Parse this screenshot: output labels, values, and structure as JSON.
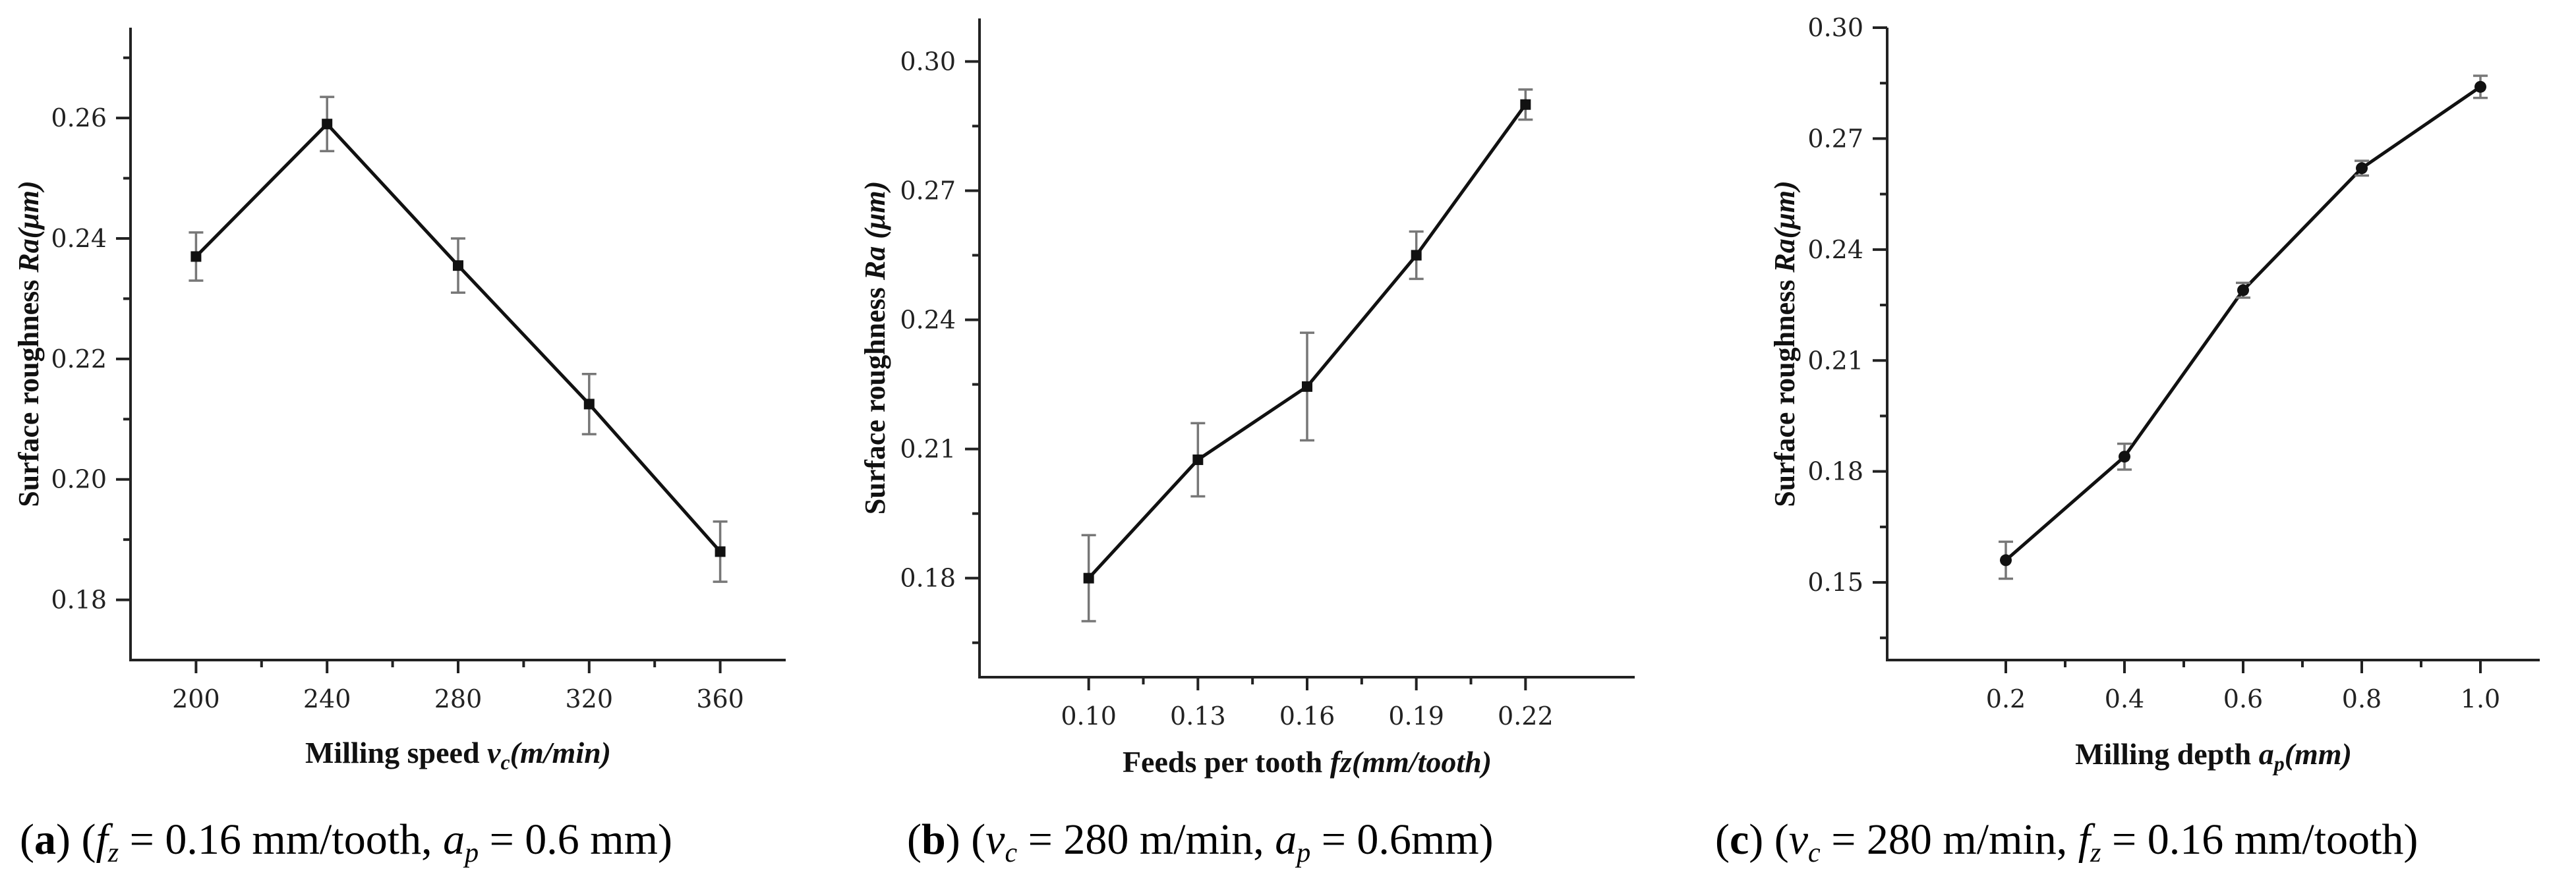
{
  "chart_data": [
    {
      "type": "line",
      "panel_label": "(a)",
      "caption": "(fz = 0.16 mm/tooth, ap = 0.6 mm)",
      "caption_parts": {
        "open": " (",
        "v1_main": "f",
        "v1_sub": "z",
        "mid1": " = 0.16 mm/tooth, ",
        "v2_main": "a",
        "v2_sub": "p",
        "end": " = 0.6 mm)"
      },
      "ylabel": "Surface roughness Ra(μm)",
      "ylabel_parts": {
        "prefix": "Surface roughness ",
        "main": "Ra(μm)",
        "sub": ""
      },
      "xlabel": "Milling speed vc(m/min)",
      "xlabel_parts": {
        "prefix": "Milling speed ",
        "main": "v",
        "sub": "c",
        "suffix": "(m/min)"
      },
      "x": [
        200,
        240,
        280,
        320,
        360
      ],
      "x_ticks": [
        "200",
        "240",
        "280",
        "320",
        "360"
      ],
      "xlim": [
        180,
        380
      ],
      "y": [
        0.237,
        0.259,
        0.2355,
        0.2125,
        0.188
      ],
      "y_err": [
        0.004,
        0.0045,
        0.0045,
        0.005,
        0.005
      ],
      "ylim": [
        0.17,
        0.275
      ],
      "y_ticks": [
        "0.18",
        "0.20",
        "0.22",
        "0.24",
        "0.26"
      ],
      "y_tick_values": [
        0.18,
        0.2,
        0.22,
        0.24,
        0.26
      ],
      "marker": "square"
    },
    {
      "type": "line",
      "panel_label": "(b)",
      "caption": "(vc = 280 m/min, ap = 0.6mm)",
      "caption_parts": {
        "open": " (",
        "v1_main": "v",
        "v1_sub": "c",
        "mid1": " = 280 m/min, ",
        "v2_main": "a",
        "v2_sub": "p",
        "end": " = 0.6mm)"
      },
      "ylabel": "Surface roughness Ra(μm)",
      "ylabel_parts": {
        "prefix": "Surface roughness ",
        "main": "Ra (μm)",
        "sub": ""
      },
      "xlabel": "Feeds per tooth fz(mm/tooth)",
      "xlabel_parts": {
        "prefix": "Feeds per tooth ",
        "main": "fz",
        "sub": "",
        "suffix": "(mm/tooth)"
      },
      "x": [
        0.1,
        0.13,
        0.16,
        0.19,
        0.22
      ],
      "x_ticks": [
        "0.10",
        "0.13",
        "0.16",
        "0.19",
        "0.22"
      ],
      "xlim": [
        0.07,
        0.25
      ],
      "y": [
        0.18,
        0.2075,
        0.2245,
        0.255,
        0.29
      ],
      "y_err": [
        0.01,
        0.0085,
        0.0125,
        0.0055,
        0.0035
      ],
      "ylim": [
        0.157,
        0.31
      ],
      "y_ticks": [
        "0.18",
        "0.21",
        "0.24",
        "0.27",
        "0.30"
      ],
      "y_tick_values": [
        0.18,
        0.21,
        0.24,
        0.27,
        0.3
      ],
      "marker": "square"
    },
    {
      "type": "line",
      "panel_label": "(c)",
      "caption": "(vc = 280 m/min, fz = 0.16 mm/tooth)",
      "caption_parts": {
        "open": " (",
        "v1_main": "v",
        "v1_sub": "c",
        "mid1": " = 280 m/min, ",
        "v2_main": "f",
        "v2_sub": "z",
        "end": " = 0.16 mm/tooth)"
      },
      "ylabel": "Surface roughness Ra(μm)",
      "ylabel_parts": {
        "prefix": "Surface roughness ",
        "main": "Ra(μm)",
        "sub": ""
      },
      "xlabel": "Milling depth ap(mm)",
      "xlabel_parts": {
        "prefix": "Milling depth ",
        "main": "a",
        "sub": "p",
        "suffix": "(mm)"
      },
      "x": [
        0.2,
        0.4,
        0.6,
        0.8,
        1.0
      ],
      "x_ticks": [
        "0.2",
        "0.4",
        "0.6",
        "0.8",
        "1.0"
      ],
      "xlim": [
        0.0,
        1.1
      ],
      "y": [
        0.156,
        0.184,
        0.229,
        0.262,
        0.284
      ],
      "y_err": [
        0.005,
        0.0035,
        0.002,
        0.002,
        0.003
      ],
      "ylim": [
        0.129,
        0.3
      ],
      "y_ticks": [
        "0.15",
        "0.18",
        "0.21",
        "0.24",
        "0.27",
        "0.30"
      ],
      "y_tick_values": [
        0.15,
        0.18,
        0.21,
        0.24,
        0.27,
        0.3
      ],
      "marker": "circle"
    }
  ]
}
